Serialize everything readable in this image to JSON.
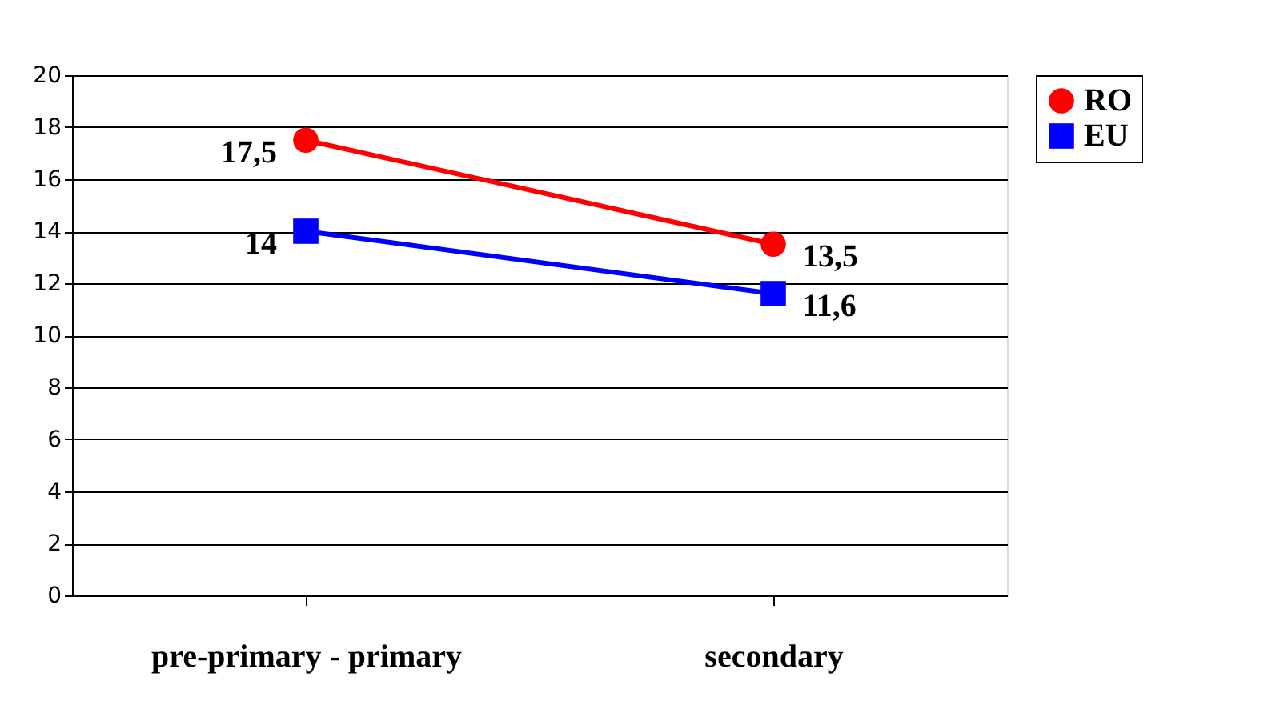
{
  "chart_data": {
    "type": "line",
    "categories": [
      "pre-primary - primary",
      "secondary"
    ],
    "series": [
      {
        "name": "RO",
        "color": "#ff0000",
        "marker": "circle",
        "values": [
          17.5,
          13.5
        ],
        "value_labels": [
          "17,5",
          "13,5"
        ]
      },
      {
        "name": "EU",
        "color": "#0000ff",
        "marker": "square",
        "values": [
          14,
          11.6
        ],
        "value_labels": [
          "14",
          "11,6"
        ]
      }
    ],
    "ylim": [
      0,
      20
    ],
    "yticks": [
      0,
      2,
      4,
      6,
      8,
      10,
      12,
      14,
      16,
      18,
      20
    ],
    "grid": "y",
    "legend": "right",
    "line_style": "solid"
  }
}
